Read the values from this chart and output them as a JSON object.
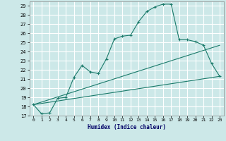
{
  "title": "",
  "xlabel": "Humidex (Indice chaleur)",
  "ylabel": "",
  "bg_color": "#cce8e8",
  "grid_color": "#ffffff",
  "line_color": "#1a7a6a",
  "ylim": [
    17,
    29.5
  ],
  "xlim": [
    -0.5,
    23.5
  ],
  "yticks": [
    17,
    18,
    19,
    20,
    21,
    22,
    23,
    24,
    25,
    26,
    27,
    28,
    29
  ],
  "xticks": [
    0,
    1,
    2,
    3,
    4,
    5,
    6,
    7,
    8,
    9,
    10,
    11,
    12,
    13,
    14,
    15,
    16,
    17,
    18,
    19,
    20,
    21,
    22,
    23
  ],
  "line1_x": [
    0,
    1,
    2,
    3,
    4,
    5,
    6,
    7,
    8,
    9,
    10,
    11,
    12,
    13,
    14,
    15,
    16,
    17,
    18,
    19,
    20,
    21,
    22,
    23
  ],
  "line1_y": [
    18.2,
    17.2,
    17.3,
    18.9,
    19.0,
    21.2,
    22.5,
    21.8,
    21.6,
    23.2,
    25.4,
    25.7,
    25.8,
    27.3,
    28.4,
    28.9,
    29.2,
    29.2,
    25.3,
    25.3,
    25.1,
    24.7,
    22.7,
    21.3
  ],
  "line2_x": [
    0,
    23
  ],
  "line2_y": [
    18.2,
    21.3
  ],
  "line3_x": [
    0,
    23
  ],
  "line3_y": [
    18.2,
    24.7
  ]
}
